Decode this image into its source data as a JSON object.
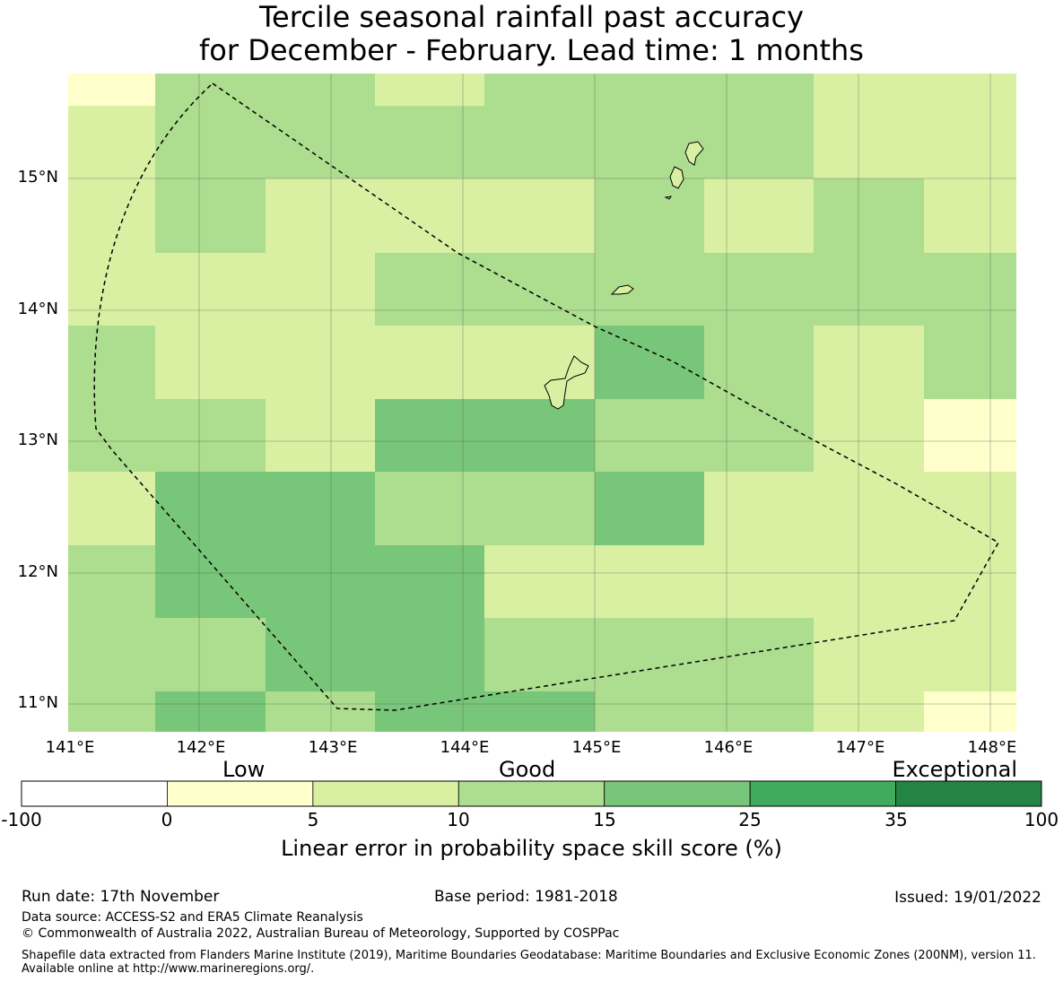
{
  "title": {
    "line1": "Tercile seasonal rainfall past accuracy",
    "line2": "for December - February. Lead time: 1 months"
  },
  "map": {
    "lon_labels": [
      "141°E",
      "142°E",
      "143°E",
      "144°E",
      "145°E",
      "146°E",
      "147°E",
      "148°E"
    ],
    "lat_labels": [
      "15°N",
      "14°N",
      "13°N",
      "12°N",
      "11°N"
    ],
    "grid_classes": [
      [
        1,
        3,
        3,
        2,
        3,
        3,
        3,
        2,
        2
      ],
      [
        2,
        3,
        3,
        3,
        3,
        3,
        3,
        2,
        2
      ],
      [
        2,
        3,
        2,
        2,
        2,
        3,
        2,
        3,
        2
      ],
      [
        2,
        2,
        2,
        3,
        3,
        3,
        3,
        3,
        3
      ],
      [
        3,
        2,
        2,
        2,
        2,
        4,
        3,
        2,
        3
      ],
      [
        3,
        3,
        2,
        4,
        4,
        3,
        3,
        2,
        1
      ],
      [
        2,
        4,
        4,
        3,
        3,
        4,
        2,
        2,
        2
      ],
      [
        3,
        4,
        4,
        4,
        2,
        2,
        2,
        2,
        2
      ],
      [
        3,
        3,
        4,
        4,
        3,
        3,
        3,
        2,
        2
      ],
      [
        3,
        4,
        3,
        4,
        4,
        3,
        3,
        2,
        1
      ]
    ]
  },
  "legend": {
    "categories": {
      "low": "Low",
      "good": "Good",
      "exceptional": "Exceptional"
    },
    "bins": [
      {
        "from": -100,
        "to": 0,
        "color": "#ffffff"
      },
      {
        "from": 0,
        "to": 5,
        "color": "#ffffcc"
      },
      {
        "from": 5,
        "to": 10,
        "color": "#d9f0a3"
      },
      {
        "from": 10,
        "to": 15,
        "color": "#addd8e"
      },
      {
        "from": 15,
        "to": 25,
        "color": "#78c679"
      },
      {
        "from": 25,
        "to": 35,
        "color": "#41ab5d"
      },
      {
        "from": 35,
        "to": 100,
        "color": "#238443"
      }
    ],
    "ticks": [
      "-100",
      "0",
      "5",
      "10",
      "15",
      "25",
      "35",
      "100"
    ],
    "label": "Linear error in probability space skill score (%)"
  },
  "footer": {
    "run_date": "Run date: 17th November",
    "base_period": "Base period: 1981-2018",
    "issued": "Issued: 19/01/2022",
    "data_source": "Data source: ACCESS-S2 and ERA5 Climate Reanalysis",
    "copyright": "© Commonwealth of Australia 2022, Australian Bureau of Meteorology, Supported by COSPPac",
    "shapefile": "Shapefile data extracted from Flanders Marine Institute (2019), Maritime Boundaries Geodatabase: Maritime Boundaries and Exclusive Economic Zones (200NM), version 11. Available online at http://www.marineregions.org/."
  }
}
